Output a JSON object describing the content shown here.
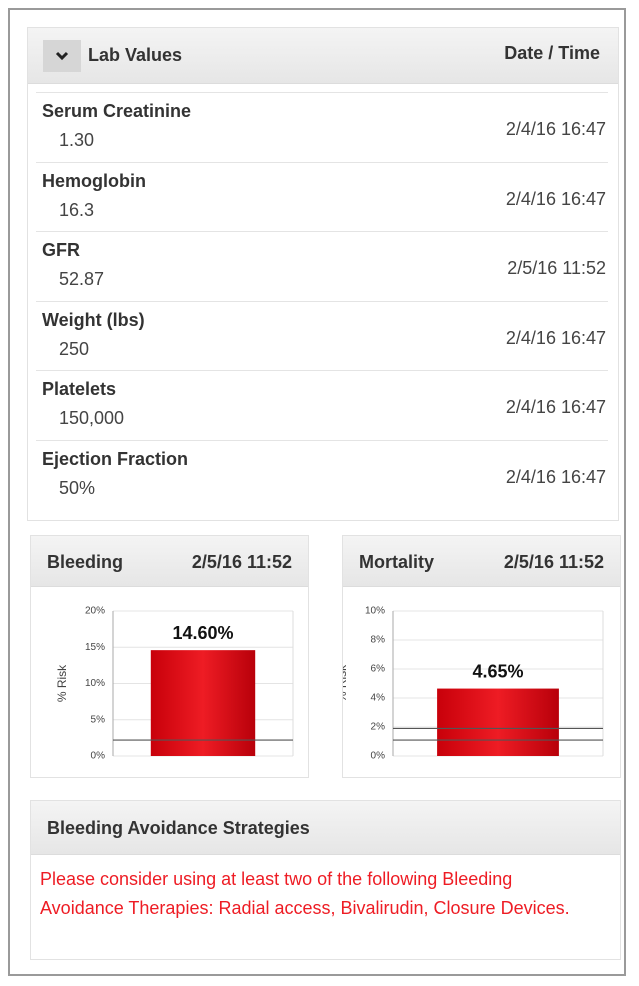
{
  "lab_values": {
    "title": "Lab Values",
    "datetime_header": "Date / Time",
    "rows": [
      {
        "name": "Serum Creatinine",
        "value": "1.30",
        "datetime": "2/4/16 16:47"
      },
      {
        "name": "Hemoglobin",
        "value": "16.3",
        "datetime": "2/4/16 16:47"
      },
      {
        "name": "GFR",
        "value": "52.87",
        "datetime": "2/5/16 11:52"
      },
      {
        "name": "Weight (lbs)",
        "value": "250",
        "datetime": "2/4/16 16:47"
      },
      {
        "name": "Platelets",
        "value": "150,000",
        "datetime": "2/4/16 16:47"
      },
      {
        "name": "Ejection Fraction",
        "value": "50%",
        "datetime": "2/4/16 16:47"
      }
    ]
  },
  "chart_data": [
    {
      "type": "bar",
      "title": "Bleeding",
      "datetime": "2/5/16 11:52",
      "ylabel": "% Risk",
      "values": [
        14.6
      ],
      "value_labels": [
        "14.60%"
      ],
      "color": "#ee1c24",
      "ylim": [
        0,
        20
      ],
      "yticks": [
        {
          "value": 0,
          "label": "0%"
        },
        {
          "value": 5,
          "label": "5%"
        },
        {
          "value": 10,
          "label": "10%"
        },
        {
          "value": 15,
          "label": "15%"
        },
        {
          "value": 20,
          "label": "20%"
        }
      ],
      "hlines": [
        2.2
      ],
      "grid": true
    },
    {
      "type": "bar",
      "title": "Mortality",
      "datetime": "2/5/16 11:52",
      "ylabel": "% Risk",
      "values": [
        4.65
      ],
      "value_labels": [
        "4.65%"
      ],
      "color": "#ee1c24",
      "ylim": [
        0,
        10
      ],
      "yticks": [
        {
          "value": 0,
          "label": "0%"
        },
        {
          "value": 2,
          "label": "2%"
        },
        {
          "value": 4,
          "label": "4%"
        },
        {
          "value": 6,
          "label": "6%"
        },
        {
          "value": 8,
          "label": "8%"
        },
        {
          "value": 10,
          "label": "10%"
        }
      ],
      "hlines": [
        1.9,
        1.1
      ],
      "grid": true
    }
  ],
  "strategies": {
    "title": "Bleeding Avoidance Strategies",
    "text": "Please consider using at least two of the following Bleeding Avoidance Therapies: Radial access, Bivalirudin, Closure Devices."
  }
}
